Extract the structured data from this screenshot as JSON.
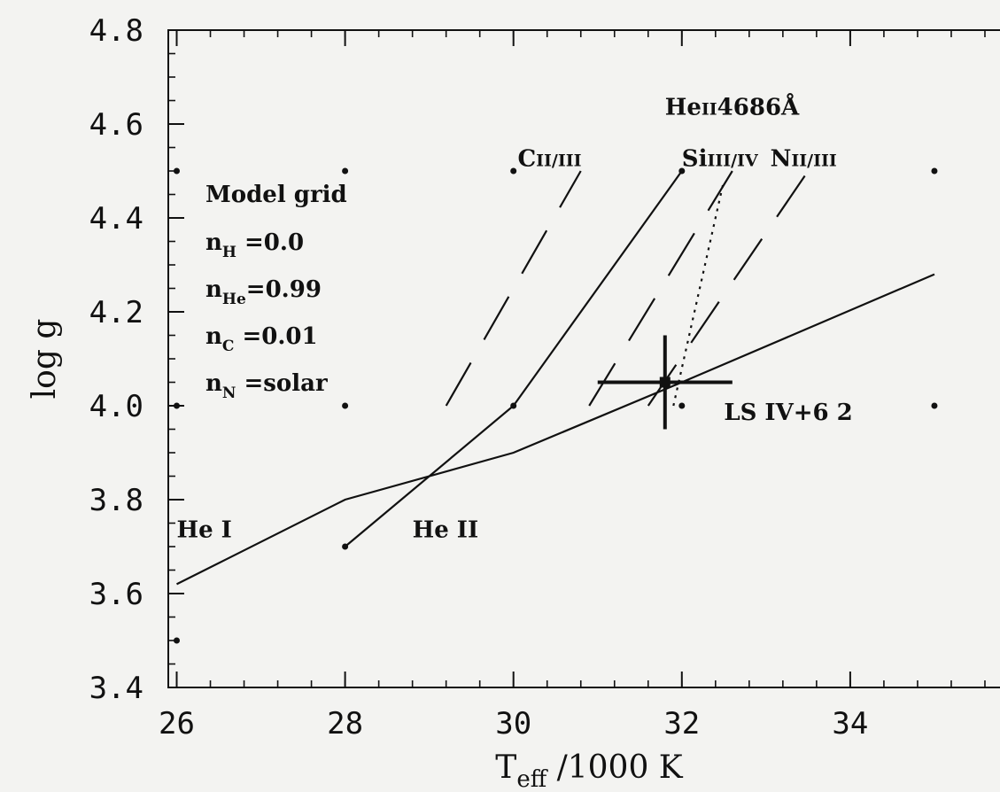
{
  "chart_data": {
    "type": "line",
    "title": "",
    "xlabel": {
      "main": "T",
      "sub": "eff",
      "rest": " /1000 K"
    },
    "ylabel": "log g",
    "xlim": [
      25.9,
      36
    ],
    "ylim": [
      3.4,
      4.8
    ],
    "x_ticks": [
      26,
      28,
      30,
      32,
      34
    ],
    "x_tick_labels": [
      "26",
      "28",
      "30",
      "32",
      "34"
    ],
    "y_ticks": [
      3.4,
      3.6,
      3.8,
      4.0,
      4.2,
      4.4,
      4.6,
      4.8
    ],
    "y_tick_labels": [
      "3.4",
      "3.6",
      "3.8",
      "4.0",
      "4.2",
      "4.4",
      "4.6",
      "4.8"
    ],
    "grid": false,
    "model_grid_points": [
      [
        26,
        4.5
      ],
      [
        28,
        4.5
      ],
      [
        30,
        4.5
      ],
      [
        32,
        4.5
      ],
      [
        35,
        4.5
      ],
      [
        26,
        4.0
      ],
      [
        28,
        4.0
      ],
      [
        30,
        4.0
      ],
      [
        32,
        4.0
      ],
      [
        35,
        4.0
      ],
      [
        28,
        3.7
      ],
      [
        26,
        3.5
      ]
    ],
    "series": [
      {
        "name": "He I",
        "style": "solid",
        "points": [
          [
            26,
            3.62
          ],
          [
            28,
            3.8
          ],
          [
            30,
            3.9
          ],
          [
            32,
            4.05
          ],
          [
            35,
            4.28
          ]
        ]
      },
      {
        "name": "He II",
        "style": "solid",
        "points": [
          [
            28,
            3.7
          ],
          [
            30,
            4.0
          ],
          [
            32,
            4.5
          ]
        ]
      },
      {
        "name": "CII/III",
        "style": "dashed",
        "points": [
          [
            29.2,
            4.0
          ],
          [
            30.8,
            4.5
          ]
        ]
      },
      {
        "name": "SiIII/IV",
        "style": "dashed",
        "points": [
          [
            30.9,
            4.0
          ],
          [
            32.6,
            4.5
          ]
        ]
      },
      {
        "name": "NII/III",
        "style": "dashed",
        "points": [
          [
            31.6,
            4.0
          ],
          [
            33.5,
            4.5
          ]
        ]
      },
      {
        "name": "HeII4686Å",
        "style": "dotted",
        "points": [
          [
            31.9,
            4.0
          ],
          [
            32.5,
            4.48
          ]
        ]
      }
    ],
    "star": {
      "name": "LS IV+6 2",
      "teff": 31.8,
      "logg": 4.05,
      "teff_err": 0.8,
      "logg_err": 0.1
    },
    "legend_box": {
      "title": "Model grid",
      "rows": [
        {
          "main": "n",
          "sub": "H",
          "value": " =0.0"
        },
        {
          "main": "n",
          "sub": "He",
          "value": "=0.99"
        },
        {
          "main": "n",
          "sub": "C",
          "value": " =0.01"
        },
        {
          "main": "n",
          "sub": "N",
          "value": " =solar"
        }
      ]
    },
    "annotations": [
      {
        "key": "he1",
        "text": "He I",
        "x": 26.0,
        "y": 3.72
      },
      {
        "key": "he2",
        "text": "He II",
        "x": 28.8,
        "y": 3.72
      },
      {
        "key": "c",
        "main": "C",
        "small": "II/III",
        "x": 30.05,
        "y": 4.51
      },
      {
        "key": "si",
        "main": "Si",
        "small": "III/IV",
        "x": 32.0,
        "y": 4.51
      },
      {
        "key": "n",
        "main": "N",
        "small": "II/III",
        "x": 33.05,
        "y": 4.51
      },
      {
        "key": "heii",
        "main": "He",
        "small": "II",
        "rest": "4686Å",
        "x": 31.8,
        "y": 4.62
      },
      {
        "key": "star",
        "text": "LS IV+6 2",
        "x": 32.5,
        "y": 3.97
      }
    ]
  }
}
